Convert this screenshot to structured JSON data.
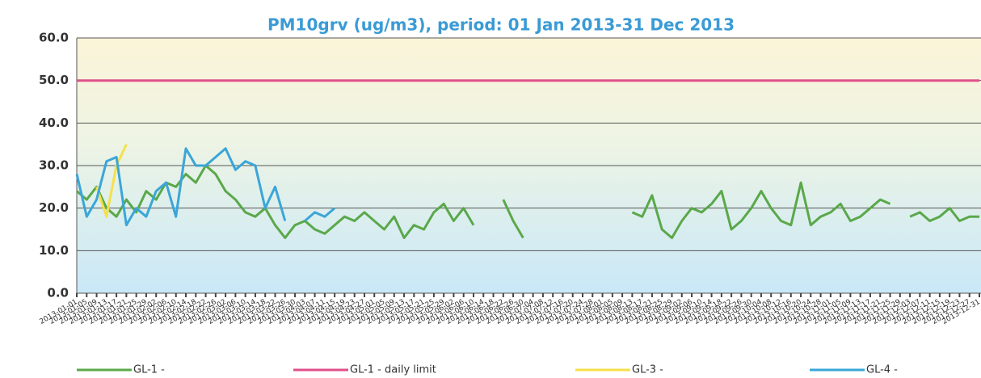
{
  "chart_data": {
    "type": "line",
    "title": "PM10grv (ug/m3), period: 01 Jan 2013-31 Dec 2013",
    "x": [
      "2013-01-01",
      "2013-01-05",
      "2013-01-09",
      "2013-01-13",
      "2013-01-17",
      "2013-01-21",
      "2013-01-25",
      "2013-01-29",
      "2013-02-02",
      "2013-02-06",
      "2013-02-10",
      "2013-02-14",
      "2013-02-18",
      "2013-02-22",
      "2013-02-26",
      "2013-03-02",
      "2013-03-06",
      "2013-03-10",
      "2013-03-14",
      "2013-03-18",
      "2013-03-22",
      "2013-03-26",
      "2013-03-30",
      "2013-04-03",
      "2013-04-07",
      "2013-04-11",
      "2013-04-15",
      "2013-04-19",
      "2013-04-23",
      "2013-04-27",
      "2013-05-01",
      "2013-05-05",
      "2013-05-09",
      "2013-05-13",
      "2013-05-17",
      "2013-05-21",
      "2013-05-25",
      "2013-05-29",
      "2013-06-02",
      "2013-06-06",
      "2013-06-10",
      "2013-06-14",
      "2013-06-18",
      "2013-06-22",
      "2013-06-26",
      "2013-06-30",
      "2013-07-04",
      "2013-07-08",
      "2013-07-12",
      "2013-07-16",
      "2013-07-20",
      "2013-07-24",
      "2013-07-28",
      "2013-08-01",
      "2013-08-05",
      "2013-08-09",
      "2013-08-13",
      "2013-08-17",
      "2013-08-21",
      "2013-08-25",
      "2013-08-29",
      "2013-09-02",
      "2013-09-06",
      "2013-09-10",
      "2013-09-14",
      "2013-09-18",
      "2013-09-22",
      "2013-09-26",
      "2013-09-30",
      "2013-10-04",
      "2013-10-08",
      "2013-10-12",
      "2013-10-16",
      "2013-10-20",
      "2013-10-24",
      "2013-10-28",
      "2013-11-01",
      "2013-11-05",
      "2013-11-09",
      "2013-11-13",
      "2013-11-17",
      "2013-11-21",
      "2013-11-25",
      "2013-11-29",
      "2013-12-03",
      "2013-12-07",
      "2013-12-11",
      "2013-12-15",
      "2013-12-19",
      "2013-12-23",
      "2013-12-27",
      "2013-12-31"
    ],
    "xlim": [
      "2013-01-01",
      "2013-12-31"
    ],
    "ylim": [
      0,
      60
    ],
    "yticks": [
      {
        "value": 0,
        "label": "0.0"
      },
      {
        "value": 10,
        "label": "10.0"
      },
      {
        "value": 20,
        "label": "20.0"
      },
      {
        "value": 30,
        "label": "30.0"
      },
      {
        "value": 40,
        "label": "40.0"
      },
      {
        "value": 50,
        "label": "50.0"
      },
      {
        "value": 60,
        "label": "60.0"
      }
    ],
    "grid": true,
    "legend": "bottom",
    "series": [
      {
        "name": "GL-1 -",
        "color": "#5aa84a",
        "values": [
          24,
          22,
          25,
          20,
          18,
          22,
          19,
          24,
          22,
          26,
          25,
          28,
          26,
          30,
          28,
          24,
          22,
          19,
          18,
          20,
          16,
          13,
          16,
          17,
          15,
          14,
          16,
          18,
          17,
          19,
          17,
          15,
          18,
          13,
          16,
          15,
          19,
          21,
          17,
          20,
          16,
          null,
          null,
          22,
          17,
          13,
          null,
          null,
          null,
          null,
          null,
          null,
          null,
          null,
          null,
          null,
          19,
          18,
          23,
          15,
          13,
          17,
          20,
          19,
          21,
          24,
          15,
          17,
          20,
          24,
          20,
          17,
          16,
          26,
          16,
          18,
          19,
          21,
          17,
          18,
          20,
          22,
          21,
          null,
          18,
          19,
          17,
          18,
          20,
          17,
          18,
          18
        ]
      },
      {
        "name": "GL-1 - daily limit",
        "color": "#e0508a",
        "values": [
          50,
          50,
          50,
          50,
          50,
          50,
          50,
          50,
          50,
          50,
          50,
          50,
          50,
          50,
          50,
          50,
          50,
          50,
          50,
          50,
          50,
          50,
          50,
          50,
          50,
          50,
          50,
          50,
          50,
          50,
          50,
          50,
          50,
          50,
          50,
          50,
          50,
          50,
          50,
          50,
          50,
          50,
          50,
          50,
          50,
          50,
          50,
          50,
          50,
          50,
          50,
          50,
          50,
          50,
          50,
          50,
          50,
          50,
          50,
          50,
          50,
          50,
          50,
          50,
          50,
          50,
          50,
          50,
          50,
          50,
          50,
          50,
          50,
          50,
          50,
          50,
          50,
          50,
          50,
          50,
          50,
          50,
          50,
          50,
          50,
          50,
          50,
          50,
          50,
          50,
          50,
          50
        ]
      },
      {
        "name": "GL-3 -",
        "color": "#f5e04a",
        "values": [
          null,
          null,
          25,
          18,
          30,
          35,
          null,
          null,
          null,
          null,
          null,
          null,
          null,
          null,
          null,
          null,
          null,
          null,
          null,
          null,
          null,
          null,
          null,
          null,
          null,
          null,
          null,
          null,
          null,
          null,
          null,
          null,
          null,
          null,
          null,
          null,
          null,
          null,
          null,
          null,
          null,
          null,
          null,
          null,
          null,
          null,
          null,
          null,
          null,
          null,
          null,
          null,
          null,
          null,
          null,
          null,
          null,
          null,
          null,
          null,
          null,
          null,
          null,
          null,
          null,
          null,
          null,
          null,
          null,
          null,
          null,
          null,
          null,
          null,
          null,
          null,
          null,
          null,
          null,
          null,
          null,
          null,
          null,
          null,
          null,
          null,
          null,
          null,
          null,
          null,
          null,
          null
        ]
      },
      {
        "name": "GL-4 -",
        "color": "#3aa6d8",
        "values": [
          28,
          18,
          22,
          31,
          32,
          16,
          20,
          18,
          24,
          26,
          18,
          34,
          30,
          30,
          32,
          34,
          29,
          31,
          30,
          20,
          25,
          17,
          null,
          17,
          19,
          18,
          20,
          null,
          null,
          null,
          null,
          null,
          null,
          null,
          null,
          null,
          null,
          null,
          null,
          null,
          null,
          null,
          null,
          null,
          null,
          null,
          null,
          null,
          null,
          null,
          null,
          null,
          null,
          null,
          null,
          null,
          null,
          null,
          null,
          null,
          null,
          null,
          null,
          null,
          null,
          null,
          null,
          null,
          null,
          null,
          null,
          null,
          null,
          null,
          null,
          null,
          null,
          null,
          null,
          null,
          null,
          null,
          null,
          null,
          null,
          null,
          null,
          null,
          null,
          null,
          null,
          null
        ]
      }
    ]
  }
}
